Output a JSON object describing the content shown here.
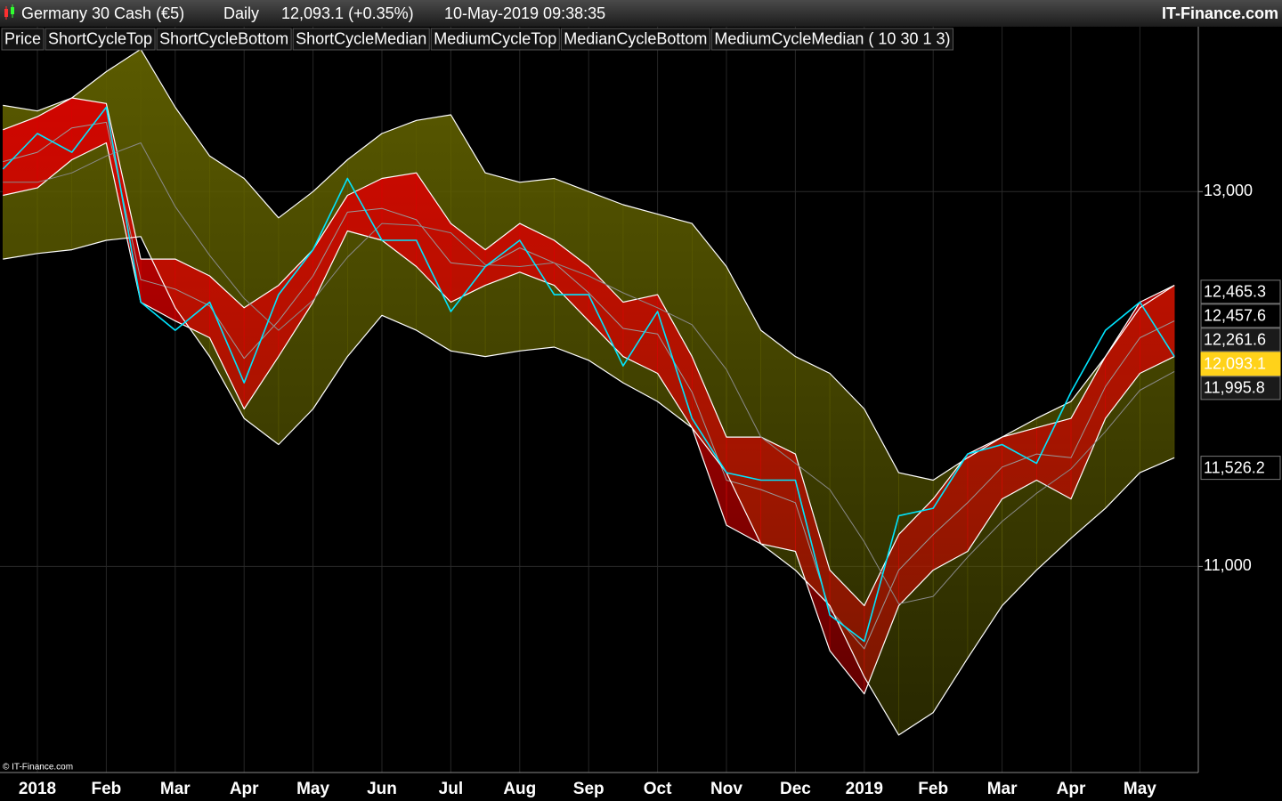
{
  "header": {
    "instrument": "Germany 30 Cash (€5)",
    "period": "Daily",
    "quote": "12,093.1 (+0.35%)",
    "timestamp": "10-May-2019 09:38:35",
    "brand": "IT-Finance.com"
  },
  "footer": {
    "copyright": "© IT-Finance.com"
  },
  "chart_data": {
    "type": "line",
    "categories": [
      null,
      "2018",
      null,
      "Feb",
      null,
      "Mar",
      null,
      "Apr",
      null,
      "May",
      null,
      "Jun",
      null,
      "Jul",
      null,
      "Aug",
      null,
      "Sep",
      null,
      "Oct",
      null,
      "Nov",
      null,
      "Dec",
      null,
      "2019",
      null,
      "Feb",
      null,
      "Mar",
      null,
      "Apr",
      null,
      "May",
      null
    ],
    "ylim": [
      9900,
      13880
    ],
    "yticks": [
      {
        "value": 11000,
        "label": "11,000"
      },
      {
        "value": 13000,
        "label": "13,000"
      }
    ],
    "grid": true,
    "series": [
      {
        "name": "Price",
        "color": "#00e5ff",
        "values": [
          13120,
          13310,
          13210,
          13450,
          12410,
          12260,
          12410,
          11980,
          12450,
          12690,
          13070,
          12740,
          12740,
          12360,
          12600,
          12740,
          12450,
          12450,
          12070,
          12360,
          11790,
          11500,
          11460,
          11460,
          10740,
          10600,
          11270,
          11310,
          11600,
          11650,
          11550,
          11930,
          12260,
          12410,
          12120
        ]
      },
      {
        "name": "ShortCycleTop",
        "color": "#ffffff",
        "band_fill": "#d80000",
        "values": [
          13330,
          13400,
          13500,
          13470,
          12640,
          12640,
          12550,
          12380,
          12500,
          12690,
          12980,
          13070,
          13100,
          12830,
          12690,
          12830,
          12740,
          12600,
          12410,
          12450,
          12120,
          11690,
          11690,
          11600,
          10980,
          10790,
          11170,
          11360,
          11600,
          11690,
          11740,
          11790,
          12120,
          12410,
          12500
        ]
      },
      {
        "name": "ShortCycleBottom",
        "color": "#ffffff",
        "values": [
          12980,
          13020,
          13170,
          13260,
          12410,
          12310,
          12220,
          11840,
          12120,
          12410,
          12790,
          12740,
          12600,
          12410,
          12500,
          12570,
          12500,
          12310,
          12120,
          12030,
          11740,
          11220,
          11120,
          11080,
          10550,
          10320,
          10790,
          10980,
          11080,
          11360,
          11460,
          11360,
          11790,
          12030,
          12120
        ]
      },
      {
        "name": "ShortCycleMedian",
        "color": "#9a9a9a",
        "legend_dimmed": true,
        "values": [
          13160,
          13210,
          13340,
          13370,
          12530,
          12480,
          12390,
          12110,
          12310,
          12550,
          12890,
          12910,
          12850,
          12620,
          12600,
          12700,
          12620,
          12460,
          12270,
          12240,
          11930,
          11460,
          11410,
          11340,
          10770,
          10560,
          10980,
          11170,
          11340,
          11530,
          11600,
          11580,
          11960,
          12220,
          12310
        ]
      },
      {
        "name": "MediumCycleTop",
        "color": "#ffffff",
        "band_fill": "#5c5c00",
        "values": [
          13460,
          13430,
          13500,
          13640,
          13760,
          13450,
          13190,
          13070,
          12860,
          13000,
          13170,
          13310,
          13380,
          13410,
          13100,
          13050,
          13070,
          13000,
          12930,
          12880,
          12830,
          12600,
          12260,
          12120,
          12030,
          11840,
          11500,
          11460,
          11580,
          11690,
          11790,
          11880,
          12120,
          12380,
          12500
        ]
      },
      {
        "name": "MedianCycleBottom",
        "color": "#ffffff",
        "values": [
          12640,
          12670,
          12690,
          12740,
          12760,
          12380,
          12120,
          11790,
          11650,
          11840,
          12120,
          12340,
          12260,
          12150,
          12120,
          12150,
          12170,
          12100,
          11980,
          11880,
          11740,
          11500,
          11120,
          10980,
          10790,
          10410,
          10100,
          10220,
          10510,
          10790,
          10980,
          11150,
          11310,
          11500,
          11580
        ]
      },
      {
        "name": "MediumCycleMedian ( 10 30 1 3)",
        "color": "#8a8a8a",
        "legend_dimmed": true,
        "values": [
          13050,
          13050,
          13100,
          13190,
          13260,
          12920,
          12660,
          12430,
          12260,
          12420,
          12650,
          12830,
          12820,
          12780,
          12610,
          12600,
          12620,
          12550,
          12460,
          12380,
          12290,
          12050,
          11690,
          11550,
          11410,
          11130,
          10800,
          10840,
          11050,
          11240,
          11390,
          11520,
          11720,
          11940,
          12040
        ]
      }
    ],
    "last_value_labels": [
      {
        "value": 12465.3,
        "label": "12,465.3"
      },
      {
        "value": 12457.6,
        "label": "12,457.6"
      },
      {
        "value": 12261.6,
        "label": "12,261.6",
        "dimmed": true
      },
      {
        "value": 12093.1,
        "label": "12,093.1",
        "highlight": true
      },
      {
        "value": 11995.8,
        "label": "11,995.8",
        "dimmed": true
      },
      {
        "value": 11526.2,
        "label": "11,526.2"
      }
    ]
  }
}
